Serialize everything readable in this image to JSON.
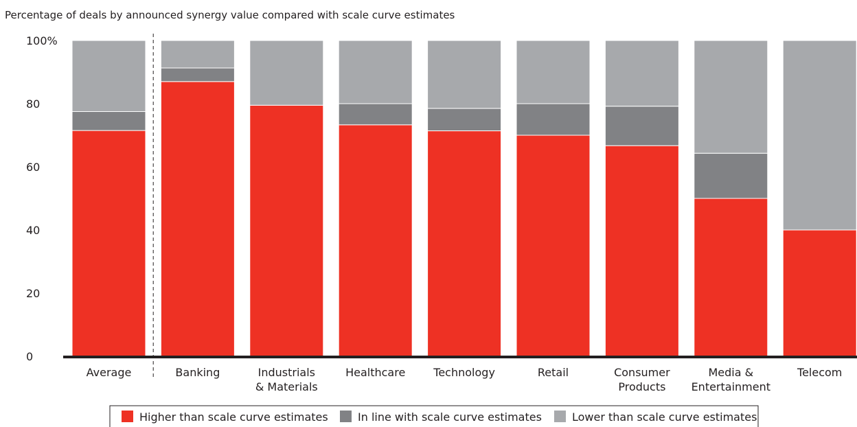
{
  "chart_data": {
    "type": "bar",
    "stacked": true,
    "title": "Percentage of deals by announced synergy value compared with scale curve estimates",
    "ylim": [
      0,
      100
    ],
    "yticks": [
      "0",
      "20",
      "40",
      "60",
      "80",
      "100%"
    ],
    "categories": [
      [
        "Average"
      ],
      [
        "Banking"
      ],
      [
        "Industrials",
        "& Materials"
      ],
      [
        "Healthcare"
      ],
      [
        "Technology"
      ],
      [
        "Retail"
      ],
      [
        "Consumer",
        "Products"
      ],
      [
        "Media &",
        "Entertainment"
      ],
      [
        "Telecom"
      ]
    ],
    "series": [
      {
        "name": "Higher than scale curve estimates",
        "color": "#ee3124",
        "values": [
          71.5,
          87,
          79.5,
          73.3,
          71.4,
          70,
          66.7,
          50,
          40
        ]
      },
      {
        "name": "In line with scale curve estimates",
        "color": "#818285",
        "values": [
          6,
          4.3,
          0,
          6.7,
          7.1,
          10,
          12.5,
          14.3,
          0
        ]
      },
      {
        "name": "Lower than scale curve estimates",
        "color": "#a7a9ac",
        "values": [
          22.5,
          8.7,
          20.5,
          20,
          21.5,
          20,
          20.8,
          35.7,
          60
        ]
      }
    ],
    "grid": false,
    "divider_after": "Average",
    "legend_position": "bottom"
  }
}
